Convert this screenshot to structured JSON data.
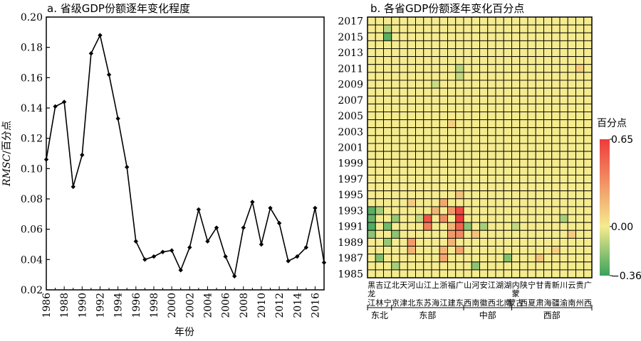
{
  "chart_data": [
    {
      "type": "line",
      "title": "a. 省级GDP份额逐年变化程度",
      "xlabel": "年份",
      "ylabel_italic": "RMSC",
      "ylabel_rest": "/百分点",
      "x_ticks": [
        "1986",
        "1988",
        "1990",
        "1992",
        "1994",
        "1996",
        "1998",
        "2000",
        "2002",
        "2004",
        "2006",
        "2008",
        "2010",
        "2012",
        "2014",
        "2016"
      ],
      "y_ticks": [
        "0.02",
        "0.04",
        "0.06",
        "0.08",
        "0.10",
        "0.12",
        "0.14",
        "0.16",
        "0.18",
        "0.20"
      ],
      "xlim": [
        1986,
        2017
      ],
      "ylim": [
        0.02,
        0.2
      ],
      "grid": false,
      "series": [
        {
          "x": [
            1986,
            1987,
            1988,
            1989,
            1990,
            1991,
            1992,
            1993,
            1994,
            1995,
            1996,
            1997,
            1998,
            1999,
            2000,
            2001,
            2002,
            2003,
            2004,
            2005,
            2006,
            2007,
            2008,
            2009,
            2010,
            2011,
            2012,
            2013,
            2014,
            2015,
            2016,
            2017
          ],
          "values": [
            0.106,
            0.141,
            0.144,
            0.088,
            0.109,
            0.176,
            0.188,
            0.162,
            0.133,
            0.101,
            0.052,
            0.04,
            0.042,
            0.045,
            0.046,
            0.033,
            0.048,
            0.073,
            0.052,
            0.061,
            0.042,
            0.029,
            0.061,
            0.078,
            0.05,
            0.074,
            0.064,
            0.039,
            0.042,
            0.048,
            0.074,
            0.038
          ]
        }
      ]
    },
    {
      "type": "heatmap",
      "title": "b. 各省GDP份额逐年变化百分点",
      "y_ticks": [
        "2017",
        "2015",
        "2013",
        "2011",
        "2009",
        "2007",
        "2005",
        "2003",
        "2001",
        "1999",
        "1997",
        "1995",
        "1993",
        "1991",
        "1989",
        "1987",
        "1985"
      ],
      "years_top_to_bottom": [
        2017,
        2016,
        2015,
        2014,
        2013,
        2012,
        2011,
        2010,
        2009,
        2008,
        2007,
        2006,
        2005,
        2004,
        2003,
        2002,
        2001,
        2000,
        1999,
        1998,
        1997,
        1996,
        1995,
        1994,
        1993,
        1992,
        1991,
        1990,
        1989,
        1988,
        1987,
        1986,
        1985
      ],
      "provinces": [
        "黑",
        "吉",
        "辽",
        "北",
        "天",
        "河",
        "山",
        "江",
        "上",
        "浙",
        "福",
        "广",
        "山",
        "河",
        "安",
        "江",
        "湖",
        "湖",
        "内",
        "陕",
        "宁",
        "甘",
        "青",
        "新",
        "川",
        "云",
        "贵",
        "广"
      ],
      "province_second_line": [
        "江",
        "林",
        "宁",
        "京",
        "津",
        "北",
        "东",
        "苏",
        "海",
        "江",
        "建",
        "东",
        "西",
        "南",
        "徽",
        "西",
        "北",
        "南",
        "蒙古",
        "西",
        "夏",
        "肃",
        "海",
        "疆",
        "渝",
        "南",
        "州",
        "西"
      ],
      "province_line2_extra": {
        "0": "龙",
        "18": "蒙"
      },
      "regions": [
        {
          "name": "东北",
          "start": 0,
          "end": 2
        },
        {
          "name": "东部",
          "start": 3,
          "end": 11
        },
        {
          "name": "中部",
          "start": 12,
          "end": 17
        },
        {
          "name": "西部",
          "start": 18,
          "end": 27
        }
      ],
      "legend_title": "百分点",
      "legend_ticks": [
        "0.65",
        "0.00",
        "−0.36"
      ],
      "value_range": [
        -0.36,
        0.65
      ],
      "colors": {
        "low": "#3aa35b",
        "mid": "#f5eb8f",
        "high": "#ee3b3b"
      },
      "highlight_cells": [
        {
          "year": 2015,
          "col": 2,
          "value": -0.3
        },
        {
          "year": 2016,
          "col": 2,
          "value": -0.12
        },
        {
          "year": 2011,
          "col": 11,
          "value": -0.12
        },
        {
          "year": 2010,
          "col": 11,
          "value": -0.1
        },
        {
          "year": 2009,
          "col": 8,
          "value": -0.08
        },
        {
          "year": 2011,
          "col": 26,
          "value": 0.12
        },
        {
          "year": 2004,
          "col": 10,
          "value": 0.1
        },
        {
          "year": 1993,
          "col": 0,
          "value": -0.3
        },
        {
          "year": 1992,
          "col": 0,
          "value": -0.28
        },
        {
          "year": 1991,
          "col": 0,
          "value": -0.32
        },
        {
          "year": 1990,
          "col": 0,
          "value": -0.2
        },
        {
          "year": 1993,
          "col": 1,
          "value": -0.15
        },
        {
          "year": 1991,
          "col": 2,
          "value": -0.25
        },
        {
          "year": 1989,
          "col": 2,
          "value": -0.18
        },
        {
          "year": 1992,
          "col": 7,
          "value": 0.55
        },
        {
          "year": 1991,
          "col": 7,
          "value": 0.4
        },
        {
          "year": 1993,
          "col": 8,
          "value": 0.2
        },
        {
          "year": 1992,
          "col": 9,
          "value": 0.35
        },
        {
          "year": 1994,
          "col": 9,
          "value": 0.25
        },
        {
          "year": 1993,
          "col": 11,
          "value": 0.6
        },
        {
          "year": 1992,
          "col": 11,
          "value": 0.65
        },
        {
          "year": 1991,
          "col": 11,
          "value": 0.5
        },
        {
          "year": 1990,
          "col": 11,
          "value": 0.35
        },
        {
          "year": 1988,
          "col": 11,
          "value": 0.25
        },
        {
          "year": 1992,
          "col": 6,
          "value": -0.1
        },
        {
          "year": 1991,
          "col": 12,
          "value": -0.2
        },
        {
          "year": 1990,
          "col": 13,
          "value": 0.15
        },
        {
          "year": 1991,
          "col": 14,
          "value": -0.15
        },
        {
          "year": 1987,
          "col": 17,
          "value": -0.22
        },
        {
          "year": 1988,
          "col": 5,
          "value": 0.2
        },
        {
          "year": 1989,
          "col": 5,
          "value": 0.3
        },
        {
          "year": 1990,
          "col": 10,
          "value": 0.3
        },
        {
          "year": 1989,
          "col": 10,
          "value": 0.2
        },
        {
          "year": 1988,
          "col": 9,
          "value": 0.2
        },
        {
          "year": 1987,
          "col": 9,
          "value": 0.25
        },
        {
          "year": 1986,
          "col": 13,
          "value": -0.2
        },
        {
          "year": 1992,
          "col": 24,
          "value": -0.15
        },
        {
          "year": 1990,
          "col": 25,
          "value": 0.12
        },
        {
          "year": 1987,
          "col": 1,
          "value": -0.22
        },
        {
          "year": 1986,
          "col": 3,
          "value": -0.15
        },
        {
          "year": 1990,
          "col": 3,
          "value": -0.2
        },
        {
          "year": 1992,
          "col": 3,
          "value": -0.18
        },
        {
          "year": 1994,
          "col": 5,
          "value": 0.12
        },
        {
          "year": 1993,
          "col": 10,
          "value": 0.3
        },
        {
          "year": 1991,
          "col": 10,
          "value": 0.2
        },
        {
          "year": 1995,
          "col": 11,
          "value": 0.15
        },
        {
          "year": 1987,
          "col": 21,
          "value": 0.15
        },
        {
          "year": 1991,
          "col": 18,
          "value": -0.1
        },
        {
          "year": 1988,
          "col": 23,
          "value": 0.1
        }
      ]
    }
  ]
}
